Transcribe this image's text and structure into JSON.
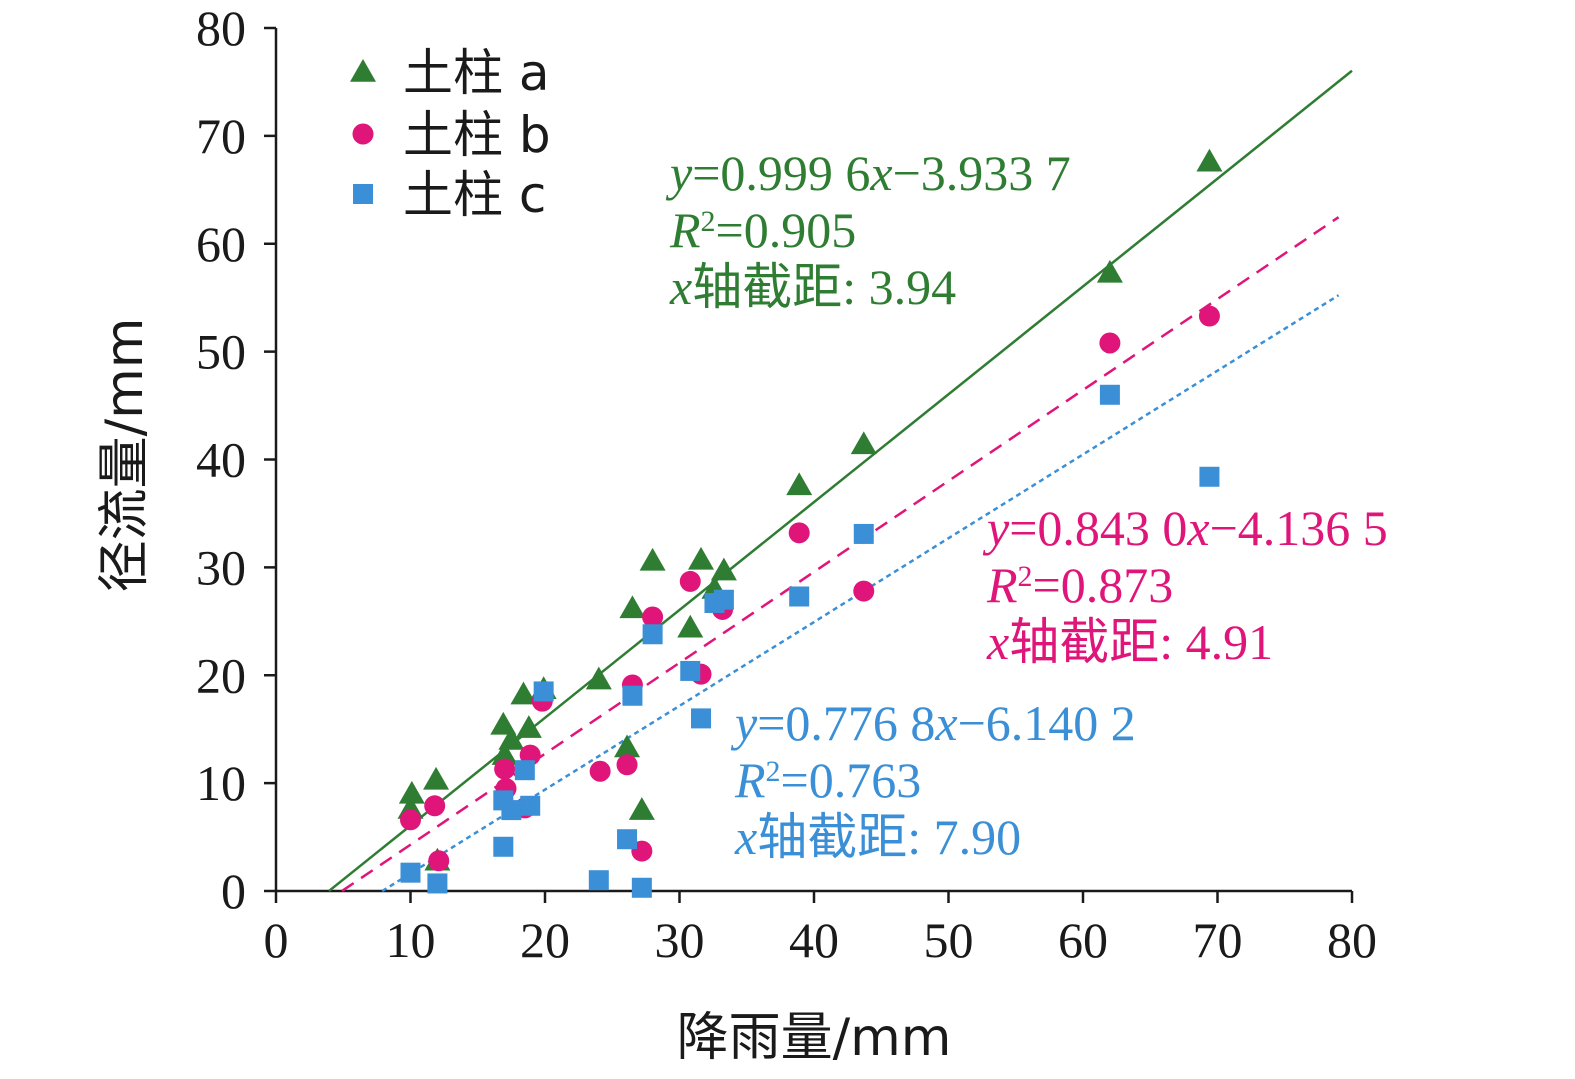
{
  "chart_data": {
    "type": "scatter",
    "title": "",
    "xlabel": "降雨量/mm",
    "ylabel": "径流量/mm",
    "xlim": [
      0,
      80
    ],
    "ylim": [
      0,
      80
    ],
    "x_ticks": [
      0,
      10,
      20,
      30,
      40,
      50,
      60,
      70,
      80
    ],
    "y_ticks": [
      0,
      10,
      20,
      30,
      40,
      50,
      60,
      70,
      80
    ],
    "grid": false,
    "legend_position": "top-left",
    "series": [
      {
        "name": "土柱 a",
        "marker": "triangle",
        "color": "#2e7d32",
        "points": [
          [
            10.0,
            7.6
          ],
          [
            10.1,
            9.0
          ],
          [
            11.9,
            10.3
          ],
          [
            12.0,
            2.8
          ],
          [
            16.9,
            15.4
          ],
          [
            17.0,
            12.6
          ],
          [
            17.5,
            14.0
          ],
          [
            18.4,
            18.2
          ],
          [
            18.8,
            15.1
          ],
          [
            19.9,
            18.7
          ],
          [
            24.0,
            19.6
          ],
          [
            26.1,
            13.3
          ],
          [
            26.5,
            26.2
          ],
          [
            27.2,
            7.5
          ],
          [
            28.0,
            30.6
          ],
          [
            30.8,
            24.4
          ],
          [
            31.6,
            30.7
          ],
          [
            32.6,
            28.0
          ],
          [
            33.3,
            29.7
          ],
          [
            38.9,
            37.6
          ],
          [
            43.7,
            41.4
          ],
          [
            62.0,
            57.3
          ],
          [
            69.4,
            67.6
          ]
        ],
        "trendline": {
          "slope": 0.9996,
          "intercept": -3.9337,
          "x_start": 3.94,
          "x_end": 80,
          "style": "solid"
        },
        "equation": "=0.999 6",
        "equation_mid": "−3.933 7",
        "r2_value": "=0.905",
        "intercept_text": "轴截距: 3.94"
      },
      {
        "name": "土柱 b",
        "marker": "circle",
        "color": "#e0157a",
        "points": [
          [
            10.0,
            6.6
          ],
          [
            11.8,
            7.9
          ],
          [
            12.1,
            2.8
          ],
          [
            17.0,
            11.3
          ],
          [
            17.1,
            9.5
          ],
          [
            18.5,
            7.7
          ],
          [
            18.9,
            12.6
          ],
          [
            19.8,
            17.6
          ],
          [
            24.1,
            11.1
          ],
          [
            26.1,
            11.7
          ],
          [
            26.5,
            19.1
          ],
          [
            27.2,
            3.7
          ],
          [
            28.0,
            25.4
          ],
          [
            30.8,
            28.7
          ],
          [
            31.6,
            20.1
          ],
          [
            33.2,
            26.1
          ],
          [
            38.9,
            33.2
          ],
          [
            43.7,
            27.8
          ],
          [
            62.0,
            50.8
          ],
          [
            69.4,
            53.3
          ]
        ],
        "trendline": {
          "slope": 0.843,
          "intercept": -4.1365,
          "x_start": 4.91,
          "x_end": 79,
          "style": "dashed"
        },
        "equation": "=0.843 0",
        "equation_mid": "−4.136 5",
        "r2_value": "=0.873",
        "intercept_text": "轴截距: 4.91"
      },
      {
        "name": "土柱 c",
        "marker": "square",
        "color": "#3a8fd6",
        "points": [
          [
            10.0,
            1.7
          ],
          [
            12.0,
            0.7
          ],
          [
            16.9,
            4.1
          ],
          [
            16.9,
            8.4
          ],
          [
            17.5,
            7.5
          ],
          [
            18.5,
            11.2
          ],
          [
            18.9,
            7.9
          ],
          [
            19.9,
            18.5
          ],
          [
            24.0,
            1.0
          ],
          [
            26.1,
            4.8
          ],
          [
            26.5,
            18.1
          ],
          [
            27.2,
            0.3
          ],
          [
            28.0,
            23.8
          ],
          [
            30.8,
            20.4
          ],
          [
            31.6,
            16.0
          ],
          [
            32.6,
            26.7
          ],
          [
            33.3,
            27.0
          ],
          [
            38.9,
            27.3
          ],
          [
            43.7,
            33.1
          ],
          [
            62.0,
            46.0
          ],
          [
            69.4,
            38.4
          ]
        ],
        "trendline": {
          "slope": 0.7768,
          "intercept": -6.1402,
          "x_start": 7.9,
          "x_end": 79,
          "style": "dotted"
        },
        "equation": "=0.776 8",
        "equation_mid": "−6.140 2",
        "r2_value": "=0.763",
        "intercept_text": "轴截距: 7.90"
      }
    ]
  }
}
